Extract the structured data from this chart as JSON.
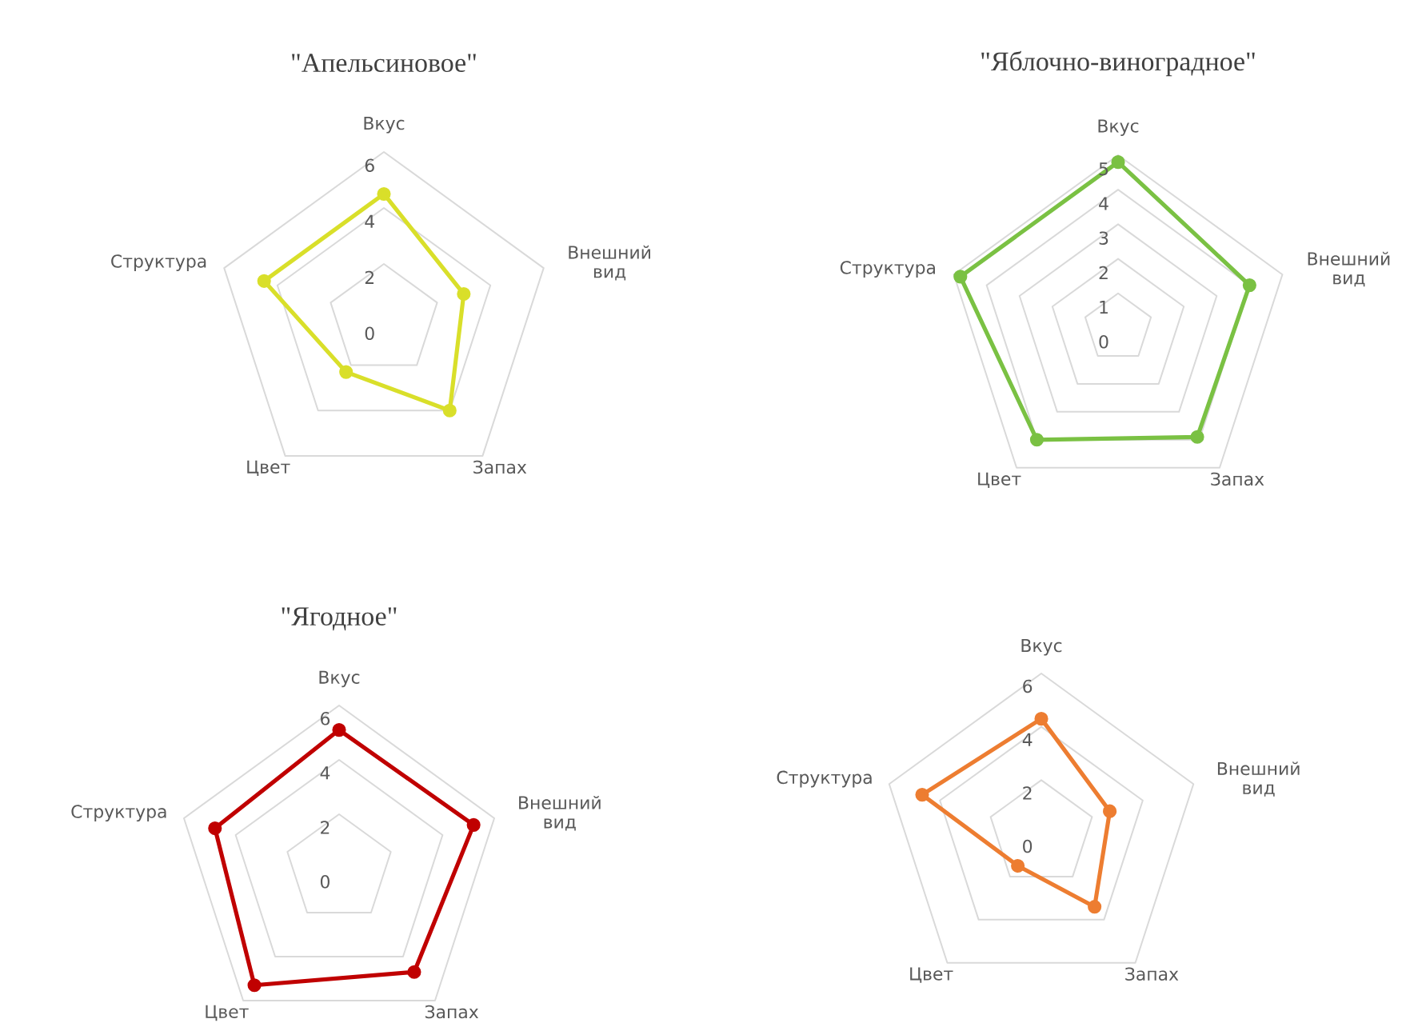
{
  "chart_data": [
    {
      "type": "radar",
      "title": "\"Апельсиновое\"",
      "categories": [
        "Вкус",
        "Внешний вид",
        "Запах",
        "Цвет",
        "Структура"
      ],
      "series": [
        {
          "color": "#d9df2a",
          "values": [
            4.5,
            3,
            4,
            2.3,
            4.5
          ]
        }
      ],
      "ylim": [
        0,
        6
      ],
      "yticks": [
        0,
        2,
        4,
        6
      ],
      "grid": true,
      "marker": "circle"
    },
    {
      "type": "radar",
      "title": "\"Яблочно-виноградное\"",
      "categories": [
        "Вкус",
        "Внешний вид",
        "Запах",
        "Цвет",
        "Структура"
      ],
      "series": [
        {
          "color": "#7ac143",
          "values": [
            4.8,
            4,
            3.9,
            4,
            4.8
          ]
        }
      ],
      "ylim": [
        0,
        5
      ],
      "yticks": [
        0,
        1,
        2,
        3,
        4,
        5
      ],
      "grid": true,
      "marker": "circle"
    },
    {
      "type": "radar",
      "title": "\"Ягодное\"",
      "categories": [
        "Вкус",
        "Внешний вид",
        "Запах",
        "Цвет",
        "Структура"
      ],
      "series": [
        {
          "color": "#c00000",
          "values": [
            5.1,
            5.2,
            4.7,
            5.3,
            4.8
          ]
        }
      ],
      "ylim": [
        0,
        6
      ],
      "yticks": [
        0,
        2,
        4,
        6
      ],
      "grid": true,
      "marker": "circle"
    },
    {
      "type": "radar",
      "categories": [
        "Вкус",
        "Внешний вид",
        "Запах",
        "Цвет",
        "Структура"
      ],
      "series": [
        {
          "color": "#ed7d31",
          "values": [
            4.3,
            2.7,
            3.4,
            1.5,
            4.7
          ]
        }
      ],
      "ylim": [
        0,
        6
      ],
      "yticks": [
        0,
        2,
        4,
        6
      ],
      "grid": true,
      "marker": "circle"
    }
  ]
}
